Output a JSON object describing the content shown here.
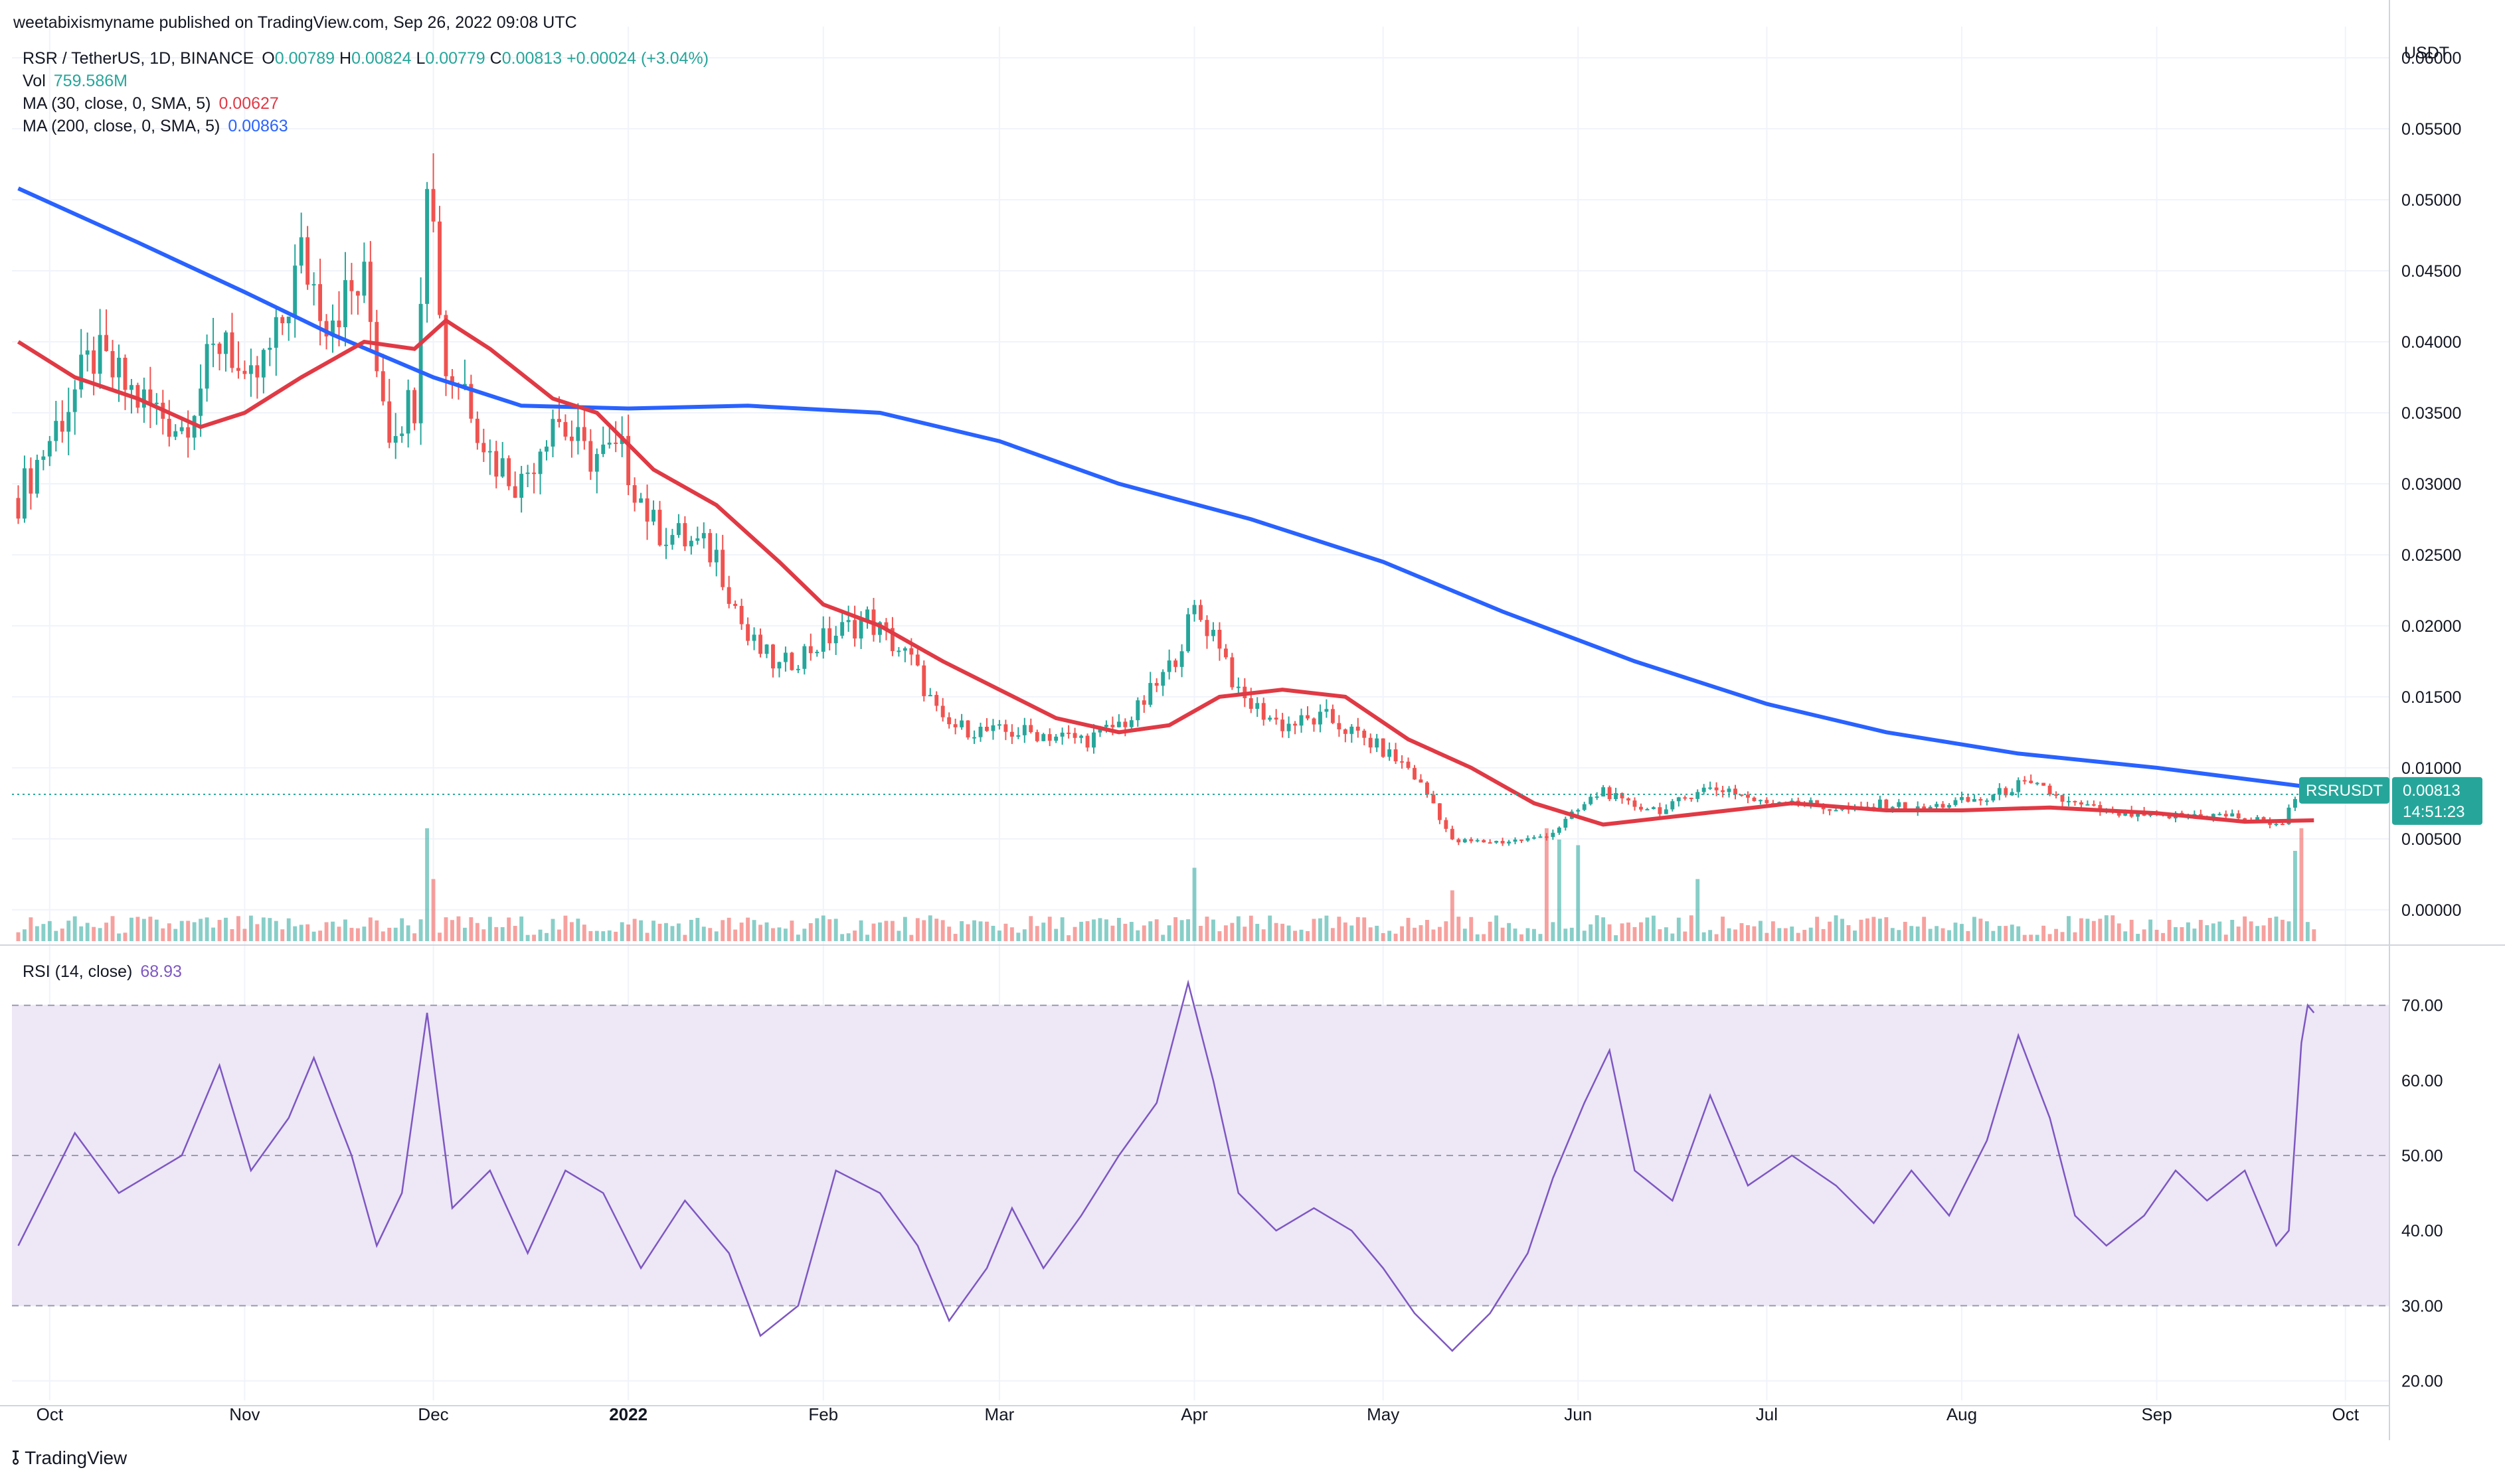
{
  "header": {
    "published": "weetabixismyname published on TradingView.com, Sep 26, 2022 09:08 UTC",
    "currency": "USDT"
  },
  "legend": {
    "pair": "RSR / TetherUS, 1D, BINANCE",
    "o_label": "O",
    "o_value": "0.00789",
    "h_label": "H",
    "h_value": "0.00824",
    "l_label": "L",
    "l_value": "0.00779",
    "c_label": "C",
    "c_value": "0.00813",
    "change": "+0.00024 (+3.04%)",
    "vol_label": "Vol",
    "vol_value": "759.586M",
    "ma30_label": "MA (30, close, 0, SMA, 5)",
    "ma30_value": "0.00627",
    "ma200_label": "MA (200, close, 0, SMA, 5)",
    "ma200_value": "0.00863",
    "rsi_label": "RSI (14, close)",
    "rsi_value": "68.93"
  },
  "last_price": {
    "symbol": "RSRUSDT",
    "price": "0.00813",
    "countdown": "14:51:23"
  },
  "brand": {
    "name": "TradingView"
  },
  "colors": {
    "up": "#26a69a",
    "down": "#ef5350",
    "ma30": "#e03a45",
    "ma200": "#2962ff",
    "rsi": "#7e57c2",
    "rsi_band": "#ede7f6",
    "grid": "#f0f3fa",
    "text": "#131722"
  },
  "chart_data": [
    {
      "type": "candlestick",
      "title": "RSR / TetherUS, 1D, BINANCE",
      "ylabel": "USDT",
      "ylim": [
        -0.0023,
        0.0622
      ],
      "yticks": [
        "0.06000",
        "0.05500",
        "0.05000",
        "0.04500",
        "0.04000",
        "0.03500",
        "0.03000",
        "0.02500",
        "0.02000",
        "0.01500",
        "0.01000",
        "0.00500",
        "0.00000"
      ],
      "ytick_values": [
        0.06,
        0.055,
        0.05,
        0.045,
        0.04,
        0.035,
        0.03,
        0.025,
        0.02,
        0.015,
        0.01,
        0.005,
        0.0
      ],
      "xtick_labels": [
        "Oct",
        "Nov",
        "Dec",
        "2022",
        "Feb",
        "Mar",
        "Apr",
        "May",
        "Jun",
        "Jul",
        "Aug",
        "Sep",
        "Oct"
      ],
      "xtick_dates": [
        "2021-10-01",
        "2021-11-01",
        "2021-12-01",
        "2022-01-01",
        "2022-02-01",
        "2022-03-01",
        "2022-04-01",
        "2022-05-01",
        "2022-06-01",
        "2022-07-01",
        "2022-08-01",
        "2022-09-01",
        "2022-10-01"
      ],
      "x_range": [
        "2021-09-25",
        "2022-10-08"
      ],
      "last_candle_date": "2022-09-26",
      "close_path": [
        [
          "2021-09-26",
          0.029
        ],
        [
          "2021-10-02",
          0.034
        ],
        [
          "2021-10-08",
          0.039
        ],
        [
          "2021-10-15",
          0.036
        ],
        [
          "2021-10-22",
          0.034
        ],
        [
          "2021-10-29",
          0.041
        ],
        [
          "2021-11-01",
          0.036
        ],
        [
          "2021-11-06",
          0.04
        ],
        [
          "2021-11-10",
          0.046
        ],
        [
          "2021-11-14",
          0.042
        ],
        [
          "2021-11-20",
          0.044
        ],
        [
          "2021-11-24",
          0.034
        ],
        [
          "2021-11-28",
          0.036
        ],
        [
          "2021-11-30",
          0.053
        ],
        [
          "2021-12-03",
          0.038
        ],
        [
          "2021-12-06",
          0.037
        ],
        [
          "2021-12-10",
          0.032
        ],
        [
          "2021-12-15",
          0.03
        ],
        [
          "2021-12-20",
          0.035
        ],
        [
          "2021-12-25",
          0.032
        ],
        [
          "2021-12-31",
          0.032
        ],
        [
          "2022-01-05",
          0.027
        ],
        [
          "2022-01-10",
          0.026
        ],
        [
          "2022-01-15",
          0.025
        ],
        [
          "2022-01-20",
          0.019
        ],
        [
          "2022-01-25",
          0.017
        ],
        [
          "2022-02-01",
          0.019
        ],
        [
          "2022-02-08",
          0.0205
        ],
        [
          "2022-02-15",
          0.0175
        ],
        [
          "2022-02-20",
          0.013
        ],
        [
          "2022-02-28",
          0.0125
        ],
        [
          "2022-03-05",
          0.0125
        ],
        [
          "2022-03-15",
          0.012
        ],
        [
          "2022-03-22",
          0.0135
        ],
        [
          "2022-03-28",
          0.017
        ],
        [
          "2022-04-01",
          0.021
        ],
        [
          "2022-04-05",
          0.019
        ],
        [
          "2022-04-08",
          0.015
        ],
        [
          "2022-04-15",
          0.013
        ],
        [
          "2022-04-22",
          0.0135
        ],
        [
          "2022-04-30",
          0.0115
        ],
        [
          "2022-05-05",
          0.01
        ],
        [
          "2022-05-09",
          0.0075
        ],
        [
          "2022-05-12",
          0.0048
        ],
        [
          "2022-05-20",
          0.0048
        ],
        [
          "2022-05-25",
          0.005
        ],
        [
          "2022-05-28",
          0.0055
        ],
        [
          "2022-06-01",
          0.007
        ],
        [
          "2022-06-05",
          0.0085
        ],
        [
          "2022-06-08",
          0.0075
        ],
        [
          "2022-06-15",
          0.007
        ],
        [
          "2022-06-20",
          0.0085
        ],
        [
          "2022-06-25",
          0.0085
        ],
        [
          "2022-06-30",
          0.0075
        ],
        [
          "2022-07-05",
          0.0078
        ],
        [
          "2022-07-10",
          0.0072
        ],
        [
          "2022-07-15",
          0.007
        ],
        [
          "2022-07-20",
          0.0075
        ],
        [
          "2022-07-25",
          0.007
        ],
        [
          "2022-07-30",
          0.0075
        ],
        [
          "2022-08-05",
          0.0078
        ],
        [
          "2022-08-10",
          0.0088
        ],
        [
          "2022-08-14",
          0.0085
        ],
        [
          "2022-08-18",
          0.0075
        ],
        [
          "2022-08-25",
          0.0068
        ],
        [
          "2022-09-01",
          0.0065
        ],
        [
          "2022-09-07",
          0.0067
        ],
        [
          "2022-09-13",
          0.0066
        ],
        [
          "2022-09-18",
          0.0062
        ],
        [
          "2022-09-21",
          0.0061
        ],
        [
          "2022-09-23",
          0.0078
        ],
        [
          "2022-09-26",
          0.0081
        ]
      ],
      "series": [
        {
          "name": "MA (30, close, 0, SMA, 5)",
          "points": [
            [
              "2021-09-26",
              0.04
            ],
            [
              "2021-10-05",
              0.0375
            ],
            [
              "2021-10-15",
              0.036
            ],
            [
              "2021-10-25",
              0.034
            ],
            [
              "2021-11-01",
              0.035
            ],
            [
              "2021-11-10",
              0.0375
            ],
            [
              "2021-11-20",
              0.04
            ],
            [
              "2021-11-28",
              0.0395
            ],
            [
              "2021-12-03",
              0.0415
            ],
            [
              "2021-12-10",
              0.0395
            ],
            [
              "2021-12-20",
              0.036
            ],
            [
              "2021-12-27",
              0.035
            ],
            [
              "2022-01-05",
              0.031
            ],
            [
              "2022-01-15",
              0.0285
            ],
            [
              "2022-01-25",
              0.0245
            ],
            [
              "2022-02-01",
              0.0215
            ],
            [
              "2022-02-10",
              0.02
            ],
            [
              "2022-02-20",
              0.0175
            ],
            [
              "2022-03-01",
              0.0155
            ],
            [
              "2022-03-10",
              0.0135
            ],
            [
              "2022-03-20",
              0.0125
            ],
            [
              "2022-03-28",
              0.013
            ],
            [
              "2022-04-05",
              0.015
            ],
            [
              "2022-04-15",
              0.0155
            ],
            [
              "2022-04-25",
              0.015
            ],
            [
              "2022-05-05",
              0.012
            ],
            [
              "2022-05-15",
              0.01
            ],
            [
              "2022-05-25",
              0.0075
            ],
            [
              "2022-06-05",
              0.006
            ],
            [
              "2022-06-15",
              0.0065
            ],
            [
              "2022-06-25",
              0.007
            ],
            [
              "2022-07-05",
              0.0075
            ],
            [
              "2022-07-20",
              0.007
            ],
            [
              "2022-08-01",
              0.007
            ],
            [
              "2022-08-15",
              0.0072
            ],
            [
              "2022-09-01",
              0.0068
            ],
            [
              "2022-09-15",
              0.0062
            ],
            [
              "2022-09-26",
              0.0063
            ]
          ]
        },
        {
          "name": "MA (200, close, 0, SMA, 5)",
          "points": [
            [
              "2021-09-26",
              0.0508
            ],
            [
              "2021-10-15",
              0.047
            ],
            [
              "2021-11-01",
              0.0435
            ],
            [
              "2021-11-15",
              0.0405
            ],
            [
              "2021-12-01",
              0.0375
            ],
            [
              "2021-12-15",
              0.0355
            ],
            [
              "2022-01-01",
              0.0353
            ],
            [
              "2022-01-20",
              0.0355
            ],
            [
              "2022-02-10",
              0.035
            ],
            [
              "2022-03-01",
              0.033
            ],
            [
              "2022-03-20",
              0.03
            ],
            [
              "2022-04-10",
              0.0275
            ],
            [
              "2022-05-01",
              0.0245
            ],
            [
              "2022-05-20",
              0.021
            ],
            [
              "2022-06-10",
              0.0175
            ],
            [
              "2022-07-01",
              0.0145
            ],
            [
              "2022-07-20",
              0.0125
            ],
            [
              "2022-08-10",
              0.011
            ],
            [
              "2022-09-01",
              0.01
            ],
            [
              "2022-09-26",
              0.0086
            ]
          ]
        }
      ]
    },
    {
      "type": "bar",
      "title": "Vol",
      "value": "759.586M",
      "peaks": [
        [
          "2021-11-30",
          1.0
        ],
        [
          "2021-12-01",
          0.55
        ],
        [
          "2022-04-01",
          0.65
        ],
        [
          "2022-05-12",
          0.45
        ],
        [
          "2022-05-27",
          1.0
        ],
        [
          "2022-05-29",
          0.9
        ],
        [
          "2022-06-01",
          0.85
        ],
        [
          "2022-06-20",
          0.55
        ],
        [
          "2022-09-23",
          0.8
        ],
        [
          "2022-09-24",
          1.0
        ]
      ]
    },
    {
      "type": "line",
      "title": "RSI (14, close)",
      "ylim": [
        17.4,
        76.6
      ],
      "yticks": [
        "70.00",
        "60.00",
        "50.00",
        "40.00",
        "30.00",
        "20.00"
      ],
      "ytick_values": [
        70,
        60,
        50,
        40,
        30,
        20
      ],
      "bands": [
        30,
        50,
        70
      ],
      "points": [
        [
          "2021-09-26",
          38
        ],
        [
          "2021-10-05",
          53
        ],
        [
          "2021-10-12",
          45
        ],
        [
          "2021-10-22",
          50
        ],
        [
          "2021-10-28",
          62
        ],
        [
          "2021-11-02",
          48
        ],
        [
          "2021-11-08",
          55
        ],
        [
          "2021-11-12",
          63
        ],
        [
          "2021-11-18",
          50
        ],
        [
          "2021-11-22",
          38
        ],
        [
          "2021-11-26",
          45
        ],
        [
          "2021-11-30",
          69
        ],
        [
          "2021-12-04",
          43
        ],
        [
          "2021-12-10",
          48
        ],
        [
          "2021-12-16",
          37
        ],
        [
          "2021-12-22",
          48
        ],
        [
          "2021-12-28",
          45
        ],
        [
          "2022-01-03",
          35
        ],
        [
          "2022-01-10",
          44
        ],
        [
          "2022-01-17",
          37
        ],
        [
          "2022-01-22",
          26
        ],
        [
          "2022-01-28",
          30
        ],
        [
          "2022-02-03",
          48
        ],
        [
          "2022-02-10",
          45
        ],
        [
          "2022-02-16",
          38
        ],
        [
          "2022-02-21",
          28
        ],
        [
          "2022-02-27",
          35
        ],
        [
          "2022-03-03",
          43
        ],
        [
          "2022-03-08",
          35
        ],
        [
          "2022-03-14",
          42
        ],
        [
          "2022-03-20",
          50
        ],
        [
          "2022-03-26",
          57
        ],
        [
          "2022-03-31",
          73
        ],
        [
          "2022-04-04",
          60
        ],
        [
          "2022-04-08",
          45
        ],
        [
          "2022-04-14",
          40
        ],
        [
          "2022-04-20",
          43
        ],
        [
          "2022-04-26",
          40
        ],
        [
          "2022-05-01",
          35
        ],
        [
          "2022-05-06",
          29
        ],
        [
          "2022-05-12",
          24
        ],
        [
          "2022-05-18",
          29
        ],
        [
          "2022-05-24",
          37
        ],
        [
          "2022-05-28",
          47
        ],
        [
          "2022-06-02",
          57
        ],
        [
          "2022-06-06",
          64
        ],
        [
          "2022-06-10",
          48
        ],
        [
          "2022-06-16",
          44
        ],
        [
          "2022-06-22",
          58
        ],
        [
          "2022-06-28",
          46
        ],
        [
          "2022-07-05",
          50
        ],
        [
          "2022-07-12",
          46
        ],
        [
          "2022-07-18",
          41
        ],
        [
          "2022-07-24",
          48
        ],
        [
          "2022-07-30",
          42
        ],
        [
          "2022-08-05",
          52
        ],
        [
          "2022-08-10",
          66
        ],
        [
          "2022-08-15",
          55
        ],
        [
          "2022-08-19",
          42
        ],
        [
          "2022-08-24",
          38
        ],
        [
          "2022-08-30",
          42
        ],
        [
          "2022-09-04",
          48
        ],
        [
          "2022-09-09",
          44
        ],
        [
          "2022-09-15",
          48
        ],
        [
          "2022-09-20",
          38
        ],
        [
          "2022-09-22",
          40
        ],
        [
          "2022-09-24",
          65
        ],
        [
          "2022-09-25",
          70
        ],
        [
          "2022-09-26",
          69
        ]
      ]
    }
  ]
}
